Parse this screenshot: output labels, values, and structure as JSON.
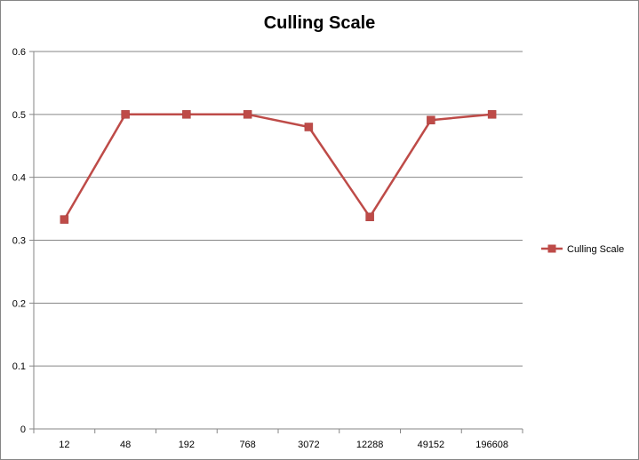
{
  "chart_data": {
    "type": "line",
    "title": "Culling Scale",
    "xlabel": "",
    "ylabel": "",
    "categories": [
      "12",
      "48",
      "192",
      "768",
      "3072",
      "12288",
      "49152",
      "196608"
    ],
    "series": [
      {
        "name": "Culling Scale",
        "values": [
          0.333,
          0.5,
          0.5,
          0.5,
          0.48,
          0.337,
          0.491,
          0.5
        ],
        "color": "#BE4B48",
        "marker": "square"
      }
    ],
    "ylim": [
      0,
      0.6
    ],
    "yticks": [
      "0",
      "0.1",
      "0.2",
      "0.3",
      "0.4",
      "0.5",
      "0.6"
    ],
    "grid": true,
    "legend": "right"
  }
}
